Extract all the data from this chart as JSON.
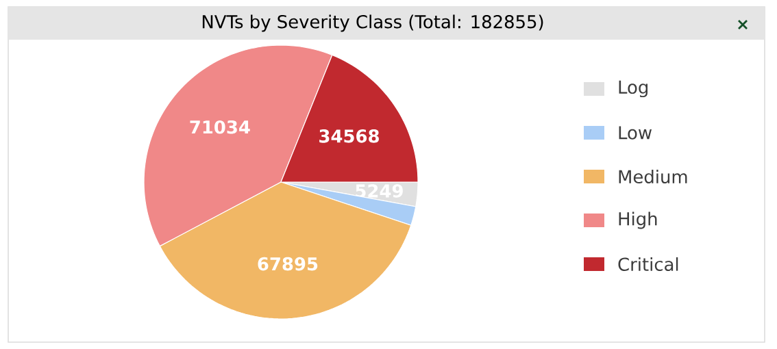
{
  "chart_data": {
    "type": "pie",
    "title": "NVTs by Severity Class (Total: 182855)",
    "categories": [
      "Log",
      "Low",
      "Medium",
      "High",
      "Critical"
    ],
    "values": [
      5249,
      4109,
      67895,
      71034,
      34568
    ],
    "colors": [
      "#e0e0e0",
      "#a9cdf6",
      "#f1b765",
      "#f08888",
      "#c1292f"
    ],
    "value_labels": [
      "5249",
      null,
      "67895",
      "71034",
      "34568"
    ],
    "legend": "right"
  }
}
